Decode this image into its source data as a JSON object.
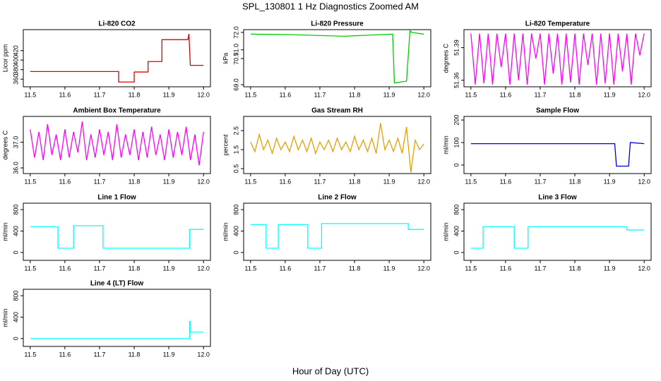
{
  "title": "SPL_130801 1 Hz Diagnostics Zoomed AM",
  "xlabel": "Hour of Day (UTC)",
  "chart_data": [
    {
      "type": "line",
      "title": "Li-820 CO2",
      "ylabel": "Licor ppm",
      "color": "#dd0000",
      "x": [
        11.5,
        11.755,
        11.755,
        11.8,
        11.8,
        11.84,
        11.84,
        11.88,
        11.88,
        11.955,
        11.958,
        11.962,
        12.0
      ],
      "values": [
        376,
        376,
        354,
        354,
        375,
        375,
        397,
        397,
        443,
        443,
        455,
        389,
        389
      ],
      "xlim": [
        11.48,
        12.02
      ],
      "xticks": [
        11.5,
        11.6,
        11.7,
        11.8,
        11.9,
        {
          "value": 12,
          "label": "12.0"
        }
      ],
      "ylim": [
        344,
        464
      ],
      "yticks": [
        360,
        380,
        400,
        420
      ]
    },
    {
      "type": "line",
      "title": "Li-820 Pressure",
      "ylabel": "kPa",
      "color": "#00cc00",
      "x": [
        11.5,
        11.6,
        11.77,
        11.85,
        11.91,
        11.915,
        11.95,
        11.96,
        11.965,
        12.0
      ],
      "values": [
        71.9,
        71.88,
        71.78,
        71.85,
        71.9,
        69.1,
        69.2,
        72.1,
        72.0,
        71.9
      ],
      "xlim": [
        11.48,
        12.02
      ],
      "xticks": [
        11.5,
        11.6,
        11.7,
        11.8,
        11.9,
        {
          "value": 12,
          "label": "12.0"
        }
      ],
      "ylim": [
        68.88,
        72.16
      ],
      "yticks": [
        {
          "value": 69,
          "label": "69.0"
        },
        70.5,
        {
          "value": 71,
          "label": "71.0"
        },
        {
          "value": 72,
          "label": "72.0"
        }
      ]
    },
    {
      "type": "line",
      "title": "Li-820 Temperature",
      "ylabel": "degrees C",
      "color": "#ff00ff",
      "x": [
        11.5,
        11.5125,
        11.525,
        11.5375,
        11.55,
        11.5625,
        11.575,
        11.5875,
        11.6,
        11.6125,
        11.625,
        11.6375,
        11.65,
        11.6625,
        11.675,
        11.6875,
        11.7,
        11.7125,
        11.725,
        11.7375,
        11.75,
        11.7625,
        11.775,
        11.7875,
        11.8,
        11.8125,
        11.825,
        11.8375,
        11.85,
        11.8625,
        11.875,
        11.8875,
        11.9,
        11.9125,
        11.925,
        11.9375,
        11.95,
        11.9625,
        11.975,
        11.9875,
        12.0
      ],
      "values": [
        51.403,
        51.356,
        51.403,
        51.357,
        51.403,
        51.356,
        51.403,
        51.372,
        51.403,
        51.356,
        51.403,
        51.36,
        51.403,
        51.356,
        51.403,
        51.38,
        51.403,
        51.356,
        51.403,
        51.366,
        51.403,
        51.356,
        51.403,
        51.358,
        51.403,
        51.356,
        51.403,
        51.374,
        51.403,
        51.356,
        51.403,
        51.357,
        51.403,
        51.356,
        51.403,
        51.368,
        51.403,
        51.356,
        51.403,
        51.383,
        51.403
      ],
      "xlim": [
        11.48,
        12.02
      ],
      "xticks": [
        11.5,
        11.6,
        11.7,
        11.8,
        11.9,
        {
          "value": 12,
          "label": "12.0"
        }
      ],
      "ylim": [
        51.354,
        51.4066
      ],
      "yticks": [
        51.36,
        51.39
      ]
    },
    {
      "type": "line",
      "title": "Ambient Box Temperature",
      "ylabel": "degrees C",
      "color": "#ff00ff",
      "x": [
        11.5,
        11.5125,
        11.525,
        11.5375,
        11.55,
        11.5625,
        11.575,
        11.5875,
        11.6,
        11.6125,
        11.625,
        11.6375,
        11.65,
        11.6625,
        11.675,
        11.6875,
        11.7,
        11.7125,
        11.725,
        11.7375,
        11.75,
        11.7625,
        11.775,
        11.7875,
        11.8,
        11.8125,
        11.825,
        11.8375,
        11.85,
        11.8625,
        11.875,
        11.8875,
        11.9,
        11.9125,
        11.925,
        11.9375,
        11.95,
        11.9625,
        11.975,
        11.9875,
        12.0
      ],
      "values": [
        37.5,
        36.4,
        37.4,
        36.3,
        37.7,
        36.5,
        37.3,
        36.3,
        37.5,
        36.4,
        37.4,
        36.6,
        37.8,
        36.3,
        37.3,
        36.4,
        37.5,
        36.5,
        37.4,
        36.3,
        37.7,
        36.4,
        37.3,
        36.5,
        37.5,
        36.3,
        37.4,
        36.4,
        37.6,
        36.5,
        37.3,
        36.3,
        37.5,
        36.4,
        37.4,
        36.5,
        37.6,
        36.3,
        37.3,
        36.1,
        37.4
      ],
      "xlim": [
        11.48,
        12.02
      ],
      "xticks": [
        11.5,
        11.6,
        11.7,
        11.8,
        11.9,
        {
          "value": 12,
          "label": "12.0"
        }
      ],
      "ylim": [
        35.78,
        38.0
      ],
      "yticks": [
        {
          "value": 36,
          "label": "36.0"
        },
        {
          "value": 37,
          "label": "37.0"
        }
      ]
    },
    {
      "type": "line",
      "title": "Gas Stream RH",
      "ylabel": "percent",
      "color": "#e69f00",
      "x": [
        11.5,
        11.5125,
        11.525,
        11.5375,
        11.55,
        11.5625,
        11.575,
        11.5875,
        11.6,
        11.6125,
        11.625,
        11.6375,
        11.65,
        11.6625,
        11.675,
        11.6875,
        11.7,
        11.7125,
        11.725,
        11.7375,
        11.75,
        11.7625,
        11.775,
        11.7875,
        11.8,
        11.8125,
        11.825,
        11.8375,
        11.85,
        11.8625,
        11.875,
        11.8875,
        11.9,
        11.9125,
        11.925,
        11.9375,
        11.95,
        11.9625,
        11.975,
        11.9875,
        12.0
      ],
      "values": [
        1.9,
        1.4,
        2.3,
        1.5,
        2.0,
        1.3,
        2.1,
        1.5,
        1.9,
        1.4,
        2.2,
        1.5,
        2.0,
        1.4,
        2.1,
        1.3,
        1.9,
        1.5,
        2.0,
        1.4,
        2.1,
        1.5,
        1.9,
        1.4,
        2.2,
        1.5,
        2.0,
        1.4,
        2.1,
        1.3,
        2.9,
        1.5,
        2.0,
        1.4,
        2.1,
        1.3,
        2.7,
        0.3,
        2.0,
        1.5,
        1.8
      ],
      "xlim": [
        11.48,
        12.02
      ],
      "xticks": [
        11.5,
        11.6,
        11.7,
        11.8,
        11.9,
        {
          "value": 12,
          "label": "12.0"
        }
      ],
      "ylim": [
        0.24,
        3.25
      ],
      "yticks": [
        0.5,
        1.5,
        2.5
      ]
    },
    {
      "type": "line",
      "title": "Sample Flow",
      "ylabel": "ml/min",
      "color": "#0000cc",
      "x": [
        11.5,
        11.915,
        11.92,
        11.955,
        11.96,
        12.0
      ],
      "values": [
        95,
        95,
        -5,
        -5,
        100,
        95
      ],
      "xlim": [
        11.48,
        12.02
      ],
      "xticks": [
        11.5,
        11.6,
        11.7,
        11.8,
        11.9,
        {
          "value": 12,
          "label": "12.0"
        }
      ],
      "ylim": [
        -38,
        216
      ],
      "yticks": [
        0,
        100,
        200
      ]
    },
    {
      "type": "line",
      "title": "Line 1 Flow",
      "ylabel": "ml/min",
      "color": "#00ffff",
      "x": [
        11.5,
        11.58,
        11.58,
        11.625,
        11.625,
        11.71,
        11.71,
        11.96,
        11.96,
        12.0
      ],
      "values": [
        480,
        480,
        80,
        80,
        500,
        500,
        80,
        80,
        430,
        430
      ],
      "xlim": [
        11.48,
        12.02
      ],
      "xticks": [
        11.5,
        11.6,
        11.7,
        11.8,
        11.9,
        {
          "value": 12,
          "label": "12.0"
        }
      ],
      "ylim": [
        -147,
        920
      ],
      "yticks": [
        0,
        400,
        800
      ]
    },
    {
      "type": "line",
      "title": "Line 2 Flow",
      "ylabel": "ml/min",
      "color": "#00ffff",
      "x": [
        11.5,
        11.545,
        11.545,
        11.58,
        11.58,
        11.665,
        11.665,
        11.705,
        11.705,
        11.955,
        11.955,
        12.0
      ],
      "values": [
        520,
        520,
        80,
        80,
        520,
        520,
        80,
        80,
        540,
        540,
        430,
        430
      ],
      "xlim": [
        11.48,
        12.02
      ],
      "xticks": [
        11.5,
        11.6,
        11.7,
        11.8,
        11.9,
        {
          "value": 12,
          "label": "12.0"
        }
      ],
      "ylim": [
        -147,
        920
      ],
      "yticks": [
        0,
        400,
        800
      ]
    },
    {
      "type": "line",
      "title": "Line 3 Flow",
      "ylabel": "ml/min",
      "color": "#00ffff",
      "x": [
        11.5,
        11.535,
        11.535,
        11.625,
        11.625,
        11.665,
        11.665,
        11.95,
        11.95,
        12.0
      ],
      "values": [
        80,
        80,
        480,
        480,
        80,
        80,
        480,
        480,
        420,
        420
      ],
      "xlim": [
        11.48,
        12.02
      ],
      "xticks": [
        11.5,
        11.6,
        11.7,
        11.8,
        11.9,
        {
          "value": 12,
          "label": "12.0"
        }
      ],
      "ylim": [
        -147,
        920
      ],
      "yticks": [
        0,
        400,
        800
      ]
    },
    {
      "type": "line",
      "title": "Line 4 (LT) Flow",
      "ylabel": "ml/min",
      "color": "#00ffff",
      "x": [
        11.5,
        11.96,
        11.96,
        11.962,
        11.962,
        12.0
      ],
      "values": [
        0,
        0,
        320,
        320,
        120,
        120
      ],
      "xlim": [
        11.48,
        12.02
      ],
      "xticks": [
        11.5,
        11.6,
        11.7,
        11.8,
        11.9,
        {
          "value": 12,
          "label": "12.0"
        }
      ],
      "ylim": [
        -147,
        920
      ],
      "yticks": [
        0,
        400,
        800
      ]
    }
  ]
}
